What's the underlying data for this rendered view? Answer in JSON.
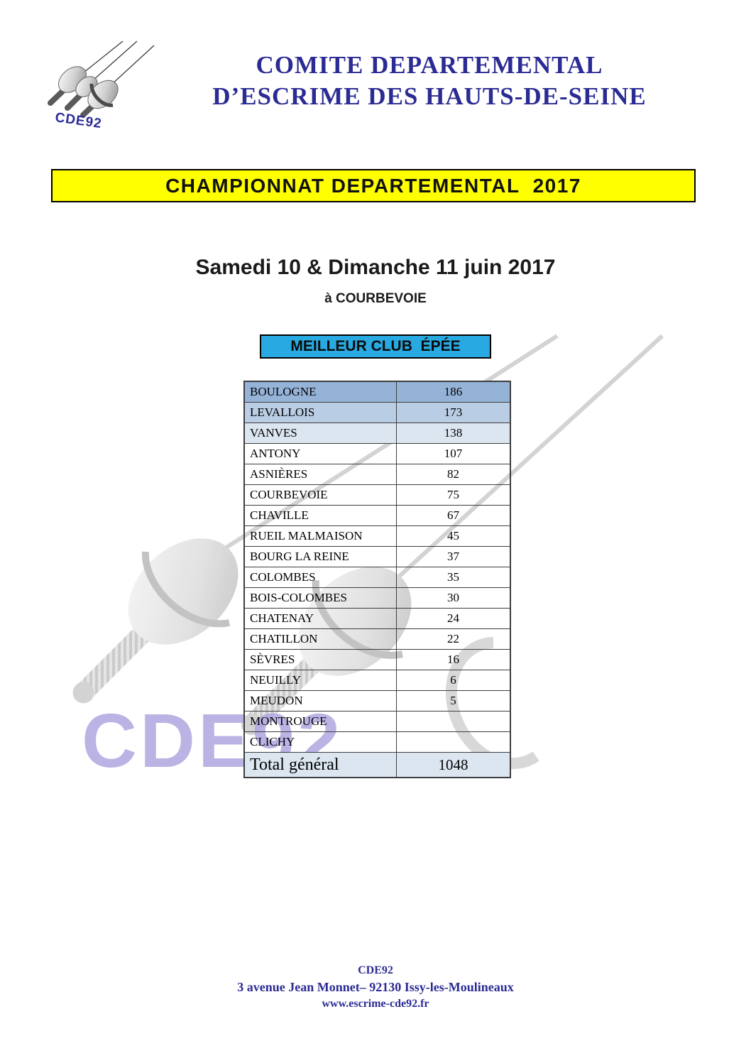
{
  "logo": {
    "text": "CDE92"
  },
  "header": {
    "title_line1": "COMITE DEPARTEMENTAL",
    "title_line2": "D’ESCRIME DES HAUTS-DE-SEINE"
  },
  "banner": {
    "text": "CHAMPIONNAT DEPARTEMENTAL  2017"
  },
  "event": {
    "date": "Samedi 10 & Dimanche 11 juin 2017",
    "location": "à COURBEVOIE"
  },
  "table": {
    "header": "MEILLEUR CLUB  ÉPÉE",
    "rows": [
      {
        "club": "BOULOGNE",
        "points": "186",
        "bg": "#95B3D7"
      },
      {
        "club": "LEVALLOIS",
        "points": "173",
        "bg": "#B9CDE5"
      },
      {
        "club": "VANVES",
        "points": "138",
        "bg": "#DCE6F1"
      },
      {
        "club": "ANTONY",
        "points": "107",
        "bg": ""
      },
      {
        "club": "ASNIÈRES",
        "points": "82",
        "bg": ""
      },
      {
        "club": "COURBEVOIE",
        "points": "75",
        "bg": ""
      },
      {
        "club": "CHAVILLE",
        "points": "67",
        "bg": ""
      },
      {
        "club": "RUEIL MALMAISON",
        "points": "45",
        "bg": ""
      },
      {
        "club": "BOURG LA REINE",
        "points": "37",
        "bg": ""
      },
      {
        "club": "COLOMBES",
        "points": "35",
        "bg": ""
      },
      {
        "club": "BOIS-COLOMBES",
        "points": "30",
        "bg": ""
      },
      {
        "club": "CHATENAY",
        "points": "24",
        "bg": ""
      },
      {
        "club": "CHATILLON",
        "points": "22",
        "bg": ""
      },
      {
        "club": "SÈVRES",
        "points": "16",
        "bg": ""
      },
      {
        "club": "NEUILLY",
        "points": "6",
        "bg": ""
      },
      {
        "club": "MEUDON",
        "points": "5",
        "bg": ""
      },
      {
        "club": "MONTROUGE",
        "points": "",
        "bg": ""
      },
      {
        "club": "CLICHY",
        "points": "",
        "bg": ""
      }
    ],
    "total": {
      "label": "Total général",
      "points": "1048",
      "bg": "#DCE6F1"
    }
  },
  "watermark": {
    "text": "CDE92"
  },
  "footer": {
    "line1": "CDE92",
    "line2": "3 avenue Jean Monnet– 92130 Issy-les-Moulineaux",
    "line3": "www.escrime-cde92.fr"
  },
  "colors": {
    "navy": "#2B2B94",
    "banner_bg": "#FFFF00",
    "club_header_bg": "#29A9E1",
    "row_blue_1": "#95B3D7",
    "row_blue_2": "#B9CDE5",
    "row_blue_3": "#DCE6F1",
    "total_bg": "#DCE6F1",
    "watermark_purple": "#ABA0DF"
  }
}
